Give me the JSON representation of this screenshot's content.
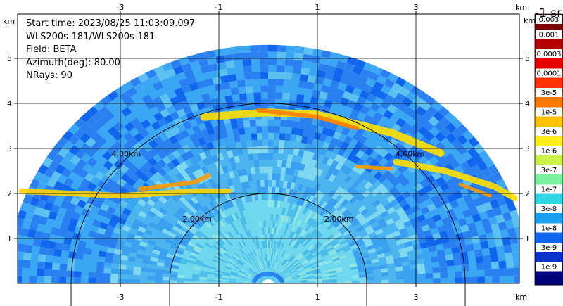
{
  "header": {
    "start_time": "Start time: 2023/08/25 11:03:09.097",
    "site": "WLS200s-181/WLS200s-181",
    "field": "Field: BETA",
    "azimuth": "Azimuth(deg): 80.00",
    "nrays": "NRays: 90"
  },
  "axes": {
    "unit": "km",
    "x_ticks": [
      "-3",
      "-1",
      "1",
      "3"
    ],
    "x_tick_values": [
      -3,
      -1,
      1,
      3
    ],
    "y_ticks": [
      "1",
      "2",
      "3",
      "4",
      "5"
    ],
    "y_tick_values": [
      1,
      2,
      3,
      4,
      5
    ],
    "x_range": [
      -5,
      5
    ],
    "y_range": [
      0,
      6
    ]
  },
  "range_rings": [
    {
      "radius_km": 2,
      "label": "2.00km"
    },
    {
      "radius_km": 4,
      "label": "4.00km"
    }
  ],
  "colorbar": {
    "unit_title": "-1 sr",
    "labels": [
      "0.003",
      "0.001",
      "0.0003",
      "0.0001",
      "3e-5",
      "1e-5",
      "3e-6",
      "1e-6",
      "3e-7",
      "1e-7",
      "3e-8",
      "1e-8",
      "3e-9",
      "1e-9"
    ],
    "colors": [
      "#7a0000",
      "#b30000",
      "#e60000",
      "#ff3300",
      "#ff7a00",
      "#ffc000",
      "#ffee22",
      "#ccf24a",
      "#7cf2a0",
      "#33d6e6",
      "#1aa0f0",
      "#1166ee",
      "#0a33cc",
      "#00007a"
    ]
  },
  "palette": {
    "background_sector": "#5fc8f0",
    "beam": "#2a80f0"
  }
}
